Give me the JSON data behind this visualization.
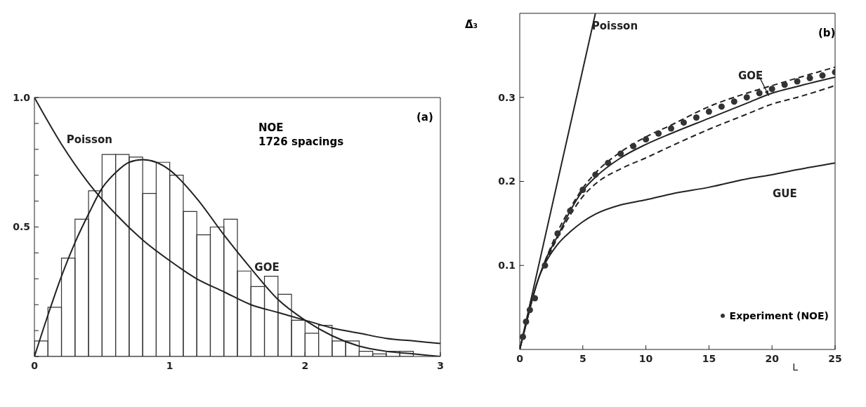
{
  "chart_data": [
    {
      "type": "histogram",
      "annotations": [
        "(a)",
        "NOE",
        "1726 spacings"
      ],
      "bins": [
        0,
        0.1,
        0.2,
        0.3,
        0.4,
        0.5,
        0.6,
        0.7,
        0.8,
        0.9,
        1.0,
        1.1,
        1.2,
        1.3,
        1.4,
        1.5,
        1.6,
        1.7,
        1.8,
        1.9,
        2.0,
        2.1,
        2.2,
        2.3,
        2.4,
        2.5,
        2.6,
        2.7,
        2.8,
        2.9,
        3.0
      ],
      "values": [
        0.06,
        0.19,
        0.38,
        0.53,
        0.64,
        0.78,
        0.78,
        0.77,
        0.63,
        0.75,
        0.7,
        0.56,
        0.47,
        0.5,
        0.53,
        0.33,
        0.27,
        0.31,
        0.24,
        0.14,
        0.09,
        0.12,
        0.06,
        0.06,
        0.02,
        0.01,
        0.02,
        0.02,
        null,
        0.0
      ],
      "color": "#333333",
      "series": [
        {
          "name": "Poisson",
          "type": "line",
          "color": "#222222",
          "x": [
            0,
            0.2,
            0.4,
            0.6,
            0.8,
            1.0,
            1.2,
            1.4,
            1.6,
            1.8,
            2.0,
            2.2,
            2.4,
            2.6,
            2.8,
            3.0
          ],
          "values": [
            1.0,
            0.82,
            0.67,
            0.55,
            0.45,
            0.37,
            0.3,
            0.25,
            0.2,
            0.17,
            0.14,
            0.11,
            0.09,
            0.07,
            0.06,
            0.05
          ]
        },
        {
          "name": "GOE",
          "type": "line",
          "color": "#222222",
          "x": [
            0,
            0.1,
            0.2,
            0.3,
            0.4,
            0.5,
            0.6,
            0.7,
            0.8,
            0.9,
            1.0,
            1.2,
            1.4,
            1.6,
            1.8,
            2.0,
            2.2,
            2.4,
            2.6,
            2.8,
            3.0
          ],
          "values": [
            0,
            0.16,
            0.31,
            0.44,
            0.55,
            0.65,
            0.71,
            0.75,
            0.76,
            0.75,
            0.72,
            0.61,
            0.47,
            0.34,
            0.22,
            0.14,
            0.08,
            0.04,
            0.02,
            0.01,
            0.0
          ]
        }
      ],
      "xlim": [
        0,
        3
      ],
      "xticks": [
        0,
        1,
        2,
        3
      ],
      "ylim": [
        0,
        1
      ],
      "yticks": [
        {
          "value": 0,
          "label": null
        },
        {
          "value": 0.1,
          "label": null
        },
        {
          "value": 0.2,
          "label": null
        },
        {
          "value": 0.3,
          "label": null
        },
        {
          "value": 0.4,
          "label": null
        },
        {
          "value": 0.5,
          "label": "0.5"
        },
        {
          "value": 0.6,
          "label": null
        },
        {
          "value": 0.7,
          "label": null
        },
        {
          "value": 0.8,
          "label": null
        },
        {
          "value": 0.9,
          "label": null
        },
        {
          "value": 1.0,
          "label": "1.0"
        }
      ]
    },
    {
      "type": "line",
      "annotations": [
        "(b)"
      ],
      "xlabel": "L",
      "ylabel": "Δ̄₃",
      "legend": "bottom right",
      "series": [
        {
          "name": "Poisson",
          "color": "#222222",
          "x": [
            0,
            6
          ],
          "values": [
            0,
            0.4
          ]
        },
        {
          "name": "GOE",
          "color": "#222222",
          "x": [
            0,
            0.5,
            1,
            1.5,
            2,
            3,
            4,
            5,
            6,
            8,
            10,
            12,
            15,
            18,
            20,
            22,
            25
          ],
          "values": [
            0,
            0.03,
            0.06,
            0.085,
            0.105,
            0.135,
            0.165,
            0.189,
            0.205,
            0.228,
            0.244,
            0.257,
            0.275,
            0.293,
            0.305,
            0.313,
            0.324
          ]
        },
        {
          "color": "#222222",
          "line_style": "dashed",
          "x": [
            2,
            3,
            4,
            5,
            6,
            8,
            10,
            12,
            15,
            18,
            20,
            22,
            25
          ],
          "values": [
            0.105,
            0.14,
            0.168,
            0.192,
            0.21,
            0.235,
            0.253,
            0.267,
            0.289,
            0.305,
            0.314,
            0.323,
            0.336
          ]
        },
        {
          "color": "#222222",
          "line_style": "dashed",
          "x": [
            2,
            3,
            4,
            5,
            6,
            8,
            10,
            12,
            15,
            18,
            20,
            22,
            25
          ],
          "values": [
            0.103,
            0.133,
            0.16,
            0.182,
            0.197,
            0.215,
            0.228,
            0.242,
            0.262,
            0.28,
            0.292,
            0.3,
            0.314
          ]
        },
        {
          "name": "GUE",
          "color": "#222222",
          "x": [
            0,
            0.5,
            1,
            1.5,
            2,
            3,
            4,
            5,
            6,
            8,
            10,
            12,
            15,
            18,
            20,
            22,
            25
          ],
          "values": [
            0,
            0.03,
            0.06,
            0.085,
            0.102,
            0.125,
            0.14,
            0.152,
            0.161,
            0.172,
            0.178,
            0.185,
            0.193,
            0.203,
            0.208,
            0.214,
            0.222
          ]
        },
        {
          "name": "Experiment (NOE)",
          "type": "scatter",
          "marker": "circle",
          "color": "#333333",
          "x": [
            0.25,
            0.5,
            0.8,
            1.2,
            2,
            3,
            4,
            5,
            6,
            7,
            8,
            9,
            10,
            11,
            12,
            13,
            14,
            15,
            16,
            17,
            18,
            19,
            20,
            21,
            22,
            23,
            24,
            25
          ],
          "values": [
            0.015,
            0.033,
            0.047,
            0.061,
            0.1,
            0.138,
            0.165,
            0.19,
            0.208,
            0.222,
            0.233,
            0.242,
            0.25,
            0.257,
            0.263,
            0.27,
            0.276,
            0.283,
            0.289,
            0.295,
            0.3,
            0.305,
            0.31,
            0.315,
            0.319,
            0.323,
            0.326,
            0.33
          ]
        }
      ],
      "xlim": [
        0,
        25
      ],
      "xticks": [
        0,
        5,
        10,
        15,
        20,
        25
      ],
      "ylim": [
        0,
        0.4
      ],
      "yticks": [
        0.1,
        0.2,
        0.3
      ]
    }
  ]
}
